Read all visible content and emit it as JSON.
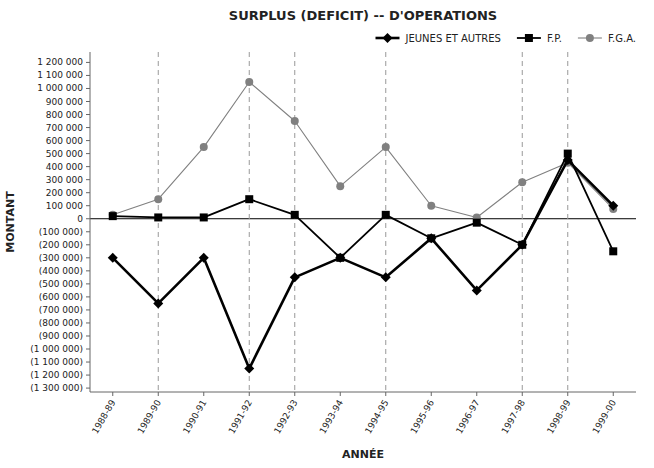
{
  "chart_data": {
    "type": "line",
    "title": "SURPLUS (DEFICIT) -- D'OPERATIONS",
    "x_label": "ANNÉE",
    "y_label": "MONTANT",
    "categories": [
      "1988-89",
      "1989-90",
      "1990-91",
      "1991-92",
      "1992-93",
      "1993-94",
      "1994-95",
      "1995-96",
      "1996-97",
      "1997-98",
      "1998-99",
      "1999-00"
    ],
    "series": [
      {
        "name": "JEUNES ET AUTRES",
        "color": "black",
        "marker": "diamond",
        "line_style": "solid",
        "values": [
          -300000,
          -650000,
          -300000,
          -1150000,
          -450000,
          -300000,
          -450000,
          -150000,
          -550000,
          -200000,
          450000,
          100000
        ]
      },
      {
        "name": "F.P.",
        "color": "black",
        "marker": "square",
        "line_style": "solid",
        "values": [
          20000,
          10000,
          10000,
          150000,
          30000,
          -300000,
          30000,
          -150000,
          -30000,
          -200000,
          500000,
          -250000
        ]
      },
      {
        "name": "F.G.A.",
        "color": "gray",
        "marker": "circle",
        "line_style": "solid",
        "values": [
          30000,
          150000,
          550000,
          1050000,
          750000,
          250000,
          550000,
          100000,
          10000,
          280000,
          430000,
          75000
        ]
      }
    ],
    "vlines": [
      "1989-90",
      "1991-92",
      "1992-93",
      "1994-95",
      "1997-98",
      "1998-99"
    ],
    "ylim": [
      -1330000,
      1280000
    ],
    "yticks": [
      {
        "value": -1300000,
        "label": "(1 300 000)"
      },
      {
        "value": -1200000,
        "label": "(1 200 000)"
      },
      {
        "value": -1100000,
        "label": "(1 100 000)"
      },
      {
        "value": -1000000,
        "label": "(1 000 000)"
      },
      {
        "value": -900000,
        "label": "(900 000)"
      },
      {
        "value": -800000,
        "label": "(800 000)"
      },
      {
        "value": -700000,
        "label": "(700 000)"
      },
      {
        "value": -600000,
        "label": "(600 000)"
      },
      {
        "value": -500000,
        "label": "(500 000)"
      },
      {
        "value": -400000,
        "label": "(400 000)"
      },
      {
        "value": -300000,
        "label": "(300 000)"
      },
      {
        "value": -200000,
        "label": "(200 000)"
      },
      {
        "value": -100000,
        "label": "(100 000)"
      },
      0,
      {
        "value": 100000,
        "label": "100 000"
      },
      {
        "value": 200000,
        "label": "200 000"
      },
      {
        "value": 300000,
        "label": "300 000"
      },
      {
        "value": 400000,
        "label": "400 000"
      },
      {
        "value": 500000,
        "label": "500 000"
      },
      {
        "value": 600000,
        "label": "600 000"
      },
      {
        "value": 700000,
        "label": "700 000"
      },
      {
        "value": 800000,
        "label": "800 000"
      },
      {
        "value": 900000,
        "label": "900 000"
      },
      {
        "value": 1000000,
        "label": "1 000 000"
      },
      {
        "value": 1100000,
        "label": "1 100 000"
      },
      {
        "value": 1200000,
        "label": "1 200 000"
      }
    ],
    "grid": false,
    "legend": "upper right"
  }
}
